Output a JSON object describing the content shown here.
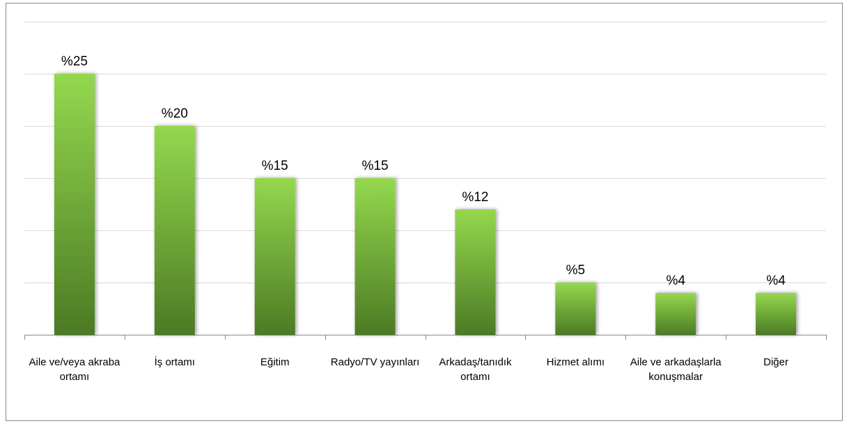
{
  "chart_data": {
    "type": "bar",
    "categories": [
      "Aile ve/veya akraba ortamı",
      "İş ortamı",
      "Eğitim",
      "Radyo/TV yayınları",
      "Arkadaş/tanıdık ortamı",
      "Hizmet alımı",
      "Aile ve arkadaşlarla konuşmalar",
      "Diğer"
    ],
    "values": [
      25,
      20,
      15,
      15,
      12,
      5,
      4,
      4
    ],
    "value_labels": [
      "%25",
      "%20",
      "%15",
      "%15",
      "%12",
      "%5",
      "%4",
      "%4"
    ],
    "ylim": [
      0,
      30
    ],
    "yticks": [
      0,
      5,
      10,
      15,
      20,
      25,
      30
    ],
    "grid": true
  }
}
